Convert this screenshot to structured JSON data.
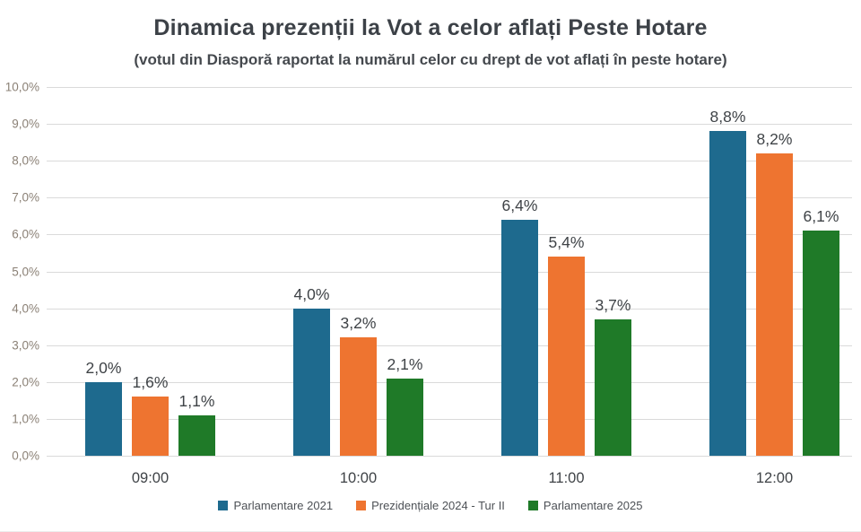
{
  "title": "Dinamica prezenții la Vot a celor aflați Peste Hotare",
  "subtitle": "(votul din Diasporă raportat la numărul celor cu drept de vot aflați în peste hotare)",
  "chart_data": {
    "type": "bar",
    "title": "Dinamica prezenții la Vot a celor aflați Peste Hotare",
    "subtitle": "(votul din Diasporă raportat la numărul celor cu drept de vot aflați în peste hotare)",
    "categories": [
      "09:00",
      "10:00",
      "11:00",
      "12:00"
    ],
    "series": [
      {
        "name": "Parlamentare 2021",
        "color": "#1E6A8E",
        "values": [
          2.0,
          4.0,
          6.4,
          8.8
        ],
        "labels": [
          "2,0%",
          "4,0%",
          "6,4%",
          "8,8%"
        ]
      },
      {
        "name": "Prezidențiale 2024 - Tur II",
        "color": "#EE7430",
        "values": [
          1.6,
          3.2,
          5.4,
          8.2
        ],
        "labels": [
          "1,6%",
          "3,2%",
          "5,4%",
          "8,2%"
        ]
      },
      {
        "name": "Parlamentare 2025",
        "color": "#1F7A28",
        "values": [
          1.1,
          2.1,
          3.7,
          6.1
        ],
        "labels": [
          "1,1%",
          "2,1%",
          "3,7%",
          "6,1%"
        ]
      }
    ],
    "xlabel": "",
    "ylabel": "",
    "ylim": [
      0,
      10
    ],
    "y_tick_step": 1,
    "y_tick_labels": [
      "0,0%",
      "1,0%",
      "2,0%",
      "3,0%",
      "4,0%",
      "5,0%",
      "6,0%",
      "7,0%",
      "8,0%",
      "9,0%",
      "10,0%"
    ],
    "grid": true,
    "legend_position": "bottom"
  },
  "colors": {
    "gridline": "#dadada",
    "y_tick_text": "#8b8176",
    "axis_text": "#3f4347",
    "title_text": "#3c4147",
    "legend_text": "#4d5156",
    "background": "#ffffff"
  }
}
